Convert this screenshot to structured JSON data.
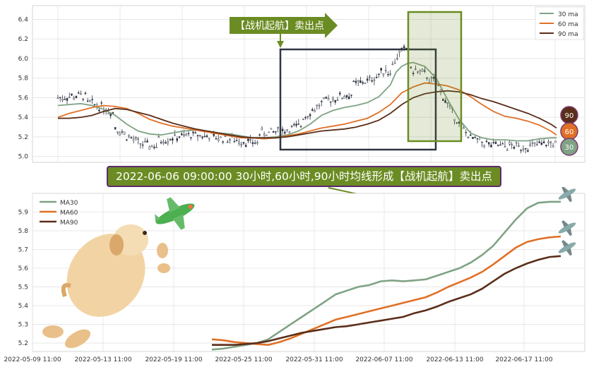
{
  "chart_data": [
    {
      "type": "line",
      "subtype": "candlestick-with-moving-averages",
      "y_ticks": [
        "5.0",
        "5.2",
        "5.4",
        "5.6",
        "5.8",
        "6.0",
        "6.2",
        "6.4"
      ],
      "ylim": [
        4.94,
        6.54
      ],
      "grid": true,
      "legend_position": "top-right",
      "legend": [
        {
          "label": "30 ma",
          "color": "#7fa384"
        },
        {
          "label": "60 ma",
          "color": "#e07026"
        },
        {
          "label": "90 ma",
          "color": "#5a2e1a"
        }
      ],
      "annotation_arrow": "【战机起航】卖出点",
      "series": [
        {
          "name": "30 ma",
          "color": "#7fa384",
          "points": [
            [
              0,
              5.52
            ],
            [
              8,
              5.53
            ],
            [
              16,
              5.54
            ],
            [
              24,
              5.52
            ],
            [
              32,
              5.48
            ],
            [
              40,
              5.42
            ],
            [
              48,
              5.33
            ],
            [
              56,
              5.26
            ],
            [
              64,
              5.23
            ],
            [
              72,
              5.22
            ],
            [
              80,
              5.24
            ],
            [
              88,
              5.26
            ],
            [
              96,
              5.27
            ],
            [
              104,
              5.26
            ],
            [
              112,
              5.24
            ],
            [
              120,
              5.23
            ],
            [
              128,
              5.21
            ],
            [
              136,
              5.19
            ],
            [
              144,
              5.19
            ],
            [
              152,
              5.2
            ],
            [
              160,
              5.22
            ],
            [
              168,
              5.26
            ],
            [
              176,
              5.33
            ],
            [
              184,
              5.42
            ],
            [
              192,
              5.47
            ],
            [
              200,
              5.5
            ],
            [
              208,
              5.52
            ],
            [
              216,
              5.55
            ],
            [
              224,
              5.61
            ],
            [
              232,
              5.73
            ],
            [
              236,
              5.86
            ],
            [
              240,
              5.92
            ],
            [
              244,
              5.95
            ],
            [
              248,
              5.96
            ],
            [
              256,
              5.92
            ],
            [
              264,
              5.8
            ],
            [
              272,
              5.58
            ],
            [
              280,
              5.38
            ],
            [
              288,
              5.24
            ],
            [
              296,
              5.19
            ],
            [
              304,
              5.17
            ],
            [
              312,
              5.17
            ],
            [
              320,
              5.16
            ],
            [
              328,
              5.16
            ],
            [
              336,
              5.18
            ],
            [
              344,
              5.19
            ],
            [
              348,
              5.19
            ]
          ]
        },
        {
          "name": "60 ma",
          "color": "#e07026",
          "points": [
            [
              0,
              5.4
            ],
            [
              8,
              5.44
            ],
            [
              16,
              5.47
            ],
            [
              24,
              5.5
            ],
            [
              32,
              5.52
            ],
            [
              40,
              5.51
            ],
            [
              48,
              5.49
            ],
            [
              56,
              5.44
            ],
            [
              64,
              5.38
            ],
            [
              72,
              5.34
            ],
            [
              80,
              5.31
            ],
            [
              88,
              5.29
            ],
            [
              96,
              5.27
            ],
            [
              104,
              5.25
            ],
            [
              112,
              5.23
            ],
            [
              120,
              5.21
            ],
            [
              128,
              5.19
            ],
            [
              136,
              5.19
            ],
            [
              144,
              5.18
            ],
            [
              152,
              5.19
            ],
            [
              160,
              5.21
            ],
            [
              168,
              5.23
            ],
            [
              176,
              5.26
            ],
            [
              184,
              5.29
            ],
            [
              192,
              5.31
            ],
            [
              200,
              5.33
            ],
            [
              208,
              5.36
            ],
            [
              216,
              5.39
            ],
            [
              224,
              5.45
            ],
            [
              232,
              5.53
            ],
            [
              240,
              5.65
            ],
            [
              248,
              5.71
            ],
            [
              256,
              5.75
            ],
            [
              264,
              5.74
            ],
            [
              272,
              5.72
            ],
            [
              280,
              5.68
            ],
            [
              288,
              5.61
            ],
            [
              296,
              5.53
            ],
            [
              304,
              5.46
            ],
            [
              312,
              5.41
            ],
            [
              320,
              5.39
            ],
            [
              328,
              5.36
            ],
            [
              336,
              5.32
            ],
            [
              344,
              5.26
            ],
            [
              348,
              5.22
            ]
          ]
        },
        {
          "name": "90 ma",
          "color": "#5a2e1a",
          "points": [
            [
              0,
              5.39
            ],
            [
              8,
              5.39
            ],
            [
              16,
              5.4
            ],
            [
              24,
              5.42
            ],
            [
              32,
              5.46
            ],
            [
              40,
              5.49
            ],
            [
              48,
              5.48
            ],
            [
              56,
              5.45
            ],
            [
              64,
              5.42
            ],
            [
              72,
              5.38
            ],
            [
              80,
              5.34
            ],
            [
              88,
              5.31
            ],
            [
              96,
              5.28
            ],
            [
              104,
              5.26
            ],
            [
              112,
              5.24
            ],
            [
              120,
              5.22
            ],
            [
              128,
              5.2
            ],
            [
              136,
              5.19
            ],
            [
              144,
              5.19
            ],
            [
              152,
              5.19
            ],
            [
              160,
              5.2
            ],
            [
              168,
              5.22
            ],
            [
              176,
              5.24
            ],
            [
              184,
              5.26
            ],
            [
              192,
              5.27
            ],
            [
              200,
              5.28
            ],
            [
              208,
              5.3
            ],
            [
              216,
              5.33
            ],
            [
              224,
              5.37
            ],
            [
              232,
              5.44
            ],
            [
              240,
              5.53
            ],
            [
              248,
              5.6
            ],
            [
              256,
              5.64
            ],
            [
              264,
              5.66
            ],
            [
              272,
              5.67
            ],
            [
              280,
              5.66
            ],
            [
              288,
              5.63
            ],
            [
              296,
              5.59
            ],
            [
              304,
              5.56
            ],
            [
              312,
              5.52
            ],
            [
              320,
              5.48
            ],
            [
              328,
              5.44
            ],
            [
              336,
              5.39
            ],
            [
              344,
              5.33
            ],
            [
              348,
              5.29
            ]
          ]
        }
      ],
      "end_badges": [
        "90",
        "60",
        "30"
      ]
    },
    {
      "type": "line",
      "title": "2022-06-06 09:00:00 30小时,60小时,90小时均线形成【战机起航】卖出点",
      "x_ticks": [
        "2022-05-09 11:00",
        "2022-05-13 11:00",
        "2022-05-19 11:00",
        "2022-05-25 11:00",
        "2022-05-31 11:00",
        "2022-06-07 11:00",
        "2022-06-13 11:00",
        "2022-06-17 11:00"
      ],
      "y_ticks": [
        "5.2",
        "5.3",
        "5.4",
        "5.5",
        "5.6",
        "5.7",
        "5.8",
        "5.9"
      ],
      "ylim": [
        5.155,
        6.0
      ],
      "grid": true,
      "legend_position": "top-left",
      "series": [
        {
          "name": "MA30",
          "color": "#7fa384",
          "points": [
            [
              0,
              5.165
            ],
            [
              6,
              5.17
            ],
            [
              12,
              5.18
            ],
            [
              18,
              5.19
            ],
            [
              24,
              5.2
            ],
            [
              30,
              5.22
            ],
            [
              36,
              5.26
            ],
            [
              42,
              5.3
            ],
            [
              48,
              5.34
            ],
            [
              54,
              5.38
            ],
            [
              60,
              5.42
            ],
            [
              66,
              5.46
            ],
            [
              72,
              5.48
            ],
            [
              78,
              5.5
            ],
            [
              84,
              5.51
            ],
            [
              90,
              5.53
            ],
            [
              96,
              5.535
            ],
            [
              102,
              5.53
            ],
            [
              108,
              5.535
            ],
            [
              114,
              5.54
            ],
            [
              120,
              5.56
            ],
            [
              126,
              5.58
            ],
            [
              132,
              5.6
            ],
            [
              138,
              5.63
            ],
            [
              144,
              5.67
            ],
            [
              150,
              5.72
            ],
            [
              156,
              5.79
            ],
            [
              162,
              5.86
            ],
            [
              168,
              5.92
            ],
            [
              174,
              5.95
            ],
            [
              180,
              5.955
            ],
            [
              186,
              5.955
            ]
          ]
        },
        {
          "name": "MA60",
          "color": "#e07026",
          "points": [
            [
              0,
              5.22
            ],
            [
              6,
              5.215
            ],
            [
              12,
              5.205
            ],
            [
              18,
              5.2
            ],
            [
              24,
              5.195
            ],
            [
              30,
              5.19
            ],
            [
              36,
              5.205
            ],
            [
              42,
              5.225
            ],
            [
              48,
              5.25
            ],
            [
              54,
              5.275
            ],
            [
              60,
              5.3
            ],
            [
              66,
              5.325
            ],
            [
              72,
              5.34
            ],
            [
              78,
              5.355
            ],
            [
              84,
              5.37
            ],
            [
              90,
              5.385
            ],
            [
              96,
              5.4
            ],
            [
              102,
              5.415
            ],
            [
              108,
              5.43
            ],
            [
              114,
              5.445
            ],
            [
              120,
              5.47
            ],
            [
              126,
              5.5
            ],
            [
              132,
              5.525
            ],
            [
              138,
              5.55
            ],
            [
              144,
              5.58
            ],
            [
              150,
              5.62
            ],
            [
              156,
              5.665
            ],
            [
              162,
              5.71
            ],
            [
              168,
              5.74
            ],
            [
              174,
              5.755
            ],
            [
              180,
              5.765
            ],
            [
              186,
              5.77
            ]
          ]
        },
        {
          "name": "MA90",
          "color": "#5a2e1a",
          "points": [
            [
              0,
              5.19
            ],
            [
              6,
              5.19
            ],
            [
              12,
              5.19
            ],
            [
              18,
              5.195
            ],
            [
              24,
              5.2
            ],
            [
              30,
              5.21
            ],
            [
              36,
              5.225
            ],
            [
              42,
              5.24
            ],
            [
              48,
              5.255
            ],
            [
              54,
              5.265
            ],
            [
              60,
              5.275
            ],
            [
              66,
              5.285
            ],
            [
              72,
              5.29
            ],
            [
              78,
              5.3
            ],
            [
              84,
              5.31
            ],
            [
              90,
              5.32
            ],
            [
              96,
              5.33
            ],
            [
              102,
              5.34
            ],
            [
              108,
              5.36
            ],
            [
              114,
              5.375
            ],
            [
              120,
              5.395
            ],
            [
              126,
              5.42
            ],
            [
              132,
              5.44
            ],
            [
              138,
              5.46
            ],
            [
              144,
              5.49
            ],
            [
              150,
              5.53
            ],
            [
              156,
              5.57
            ],
            [
              162,
              5.6
            ],
            [
              168,
              5.625
            ],
            [
              174,
              5.645
            ],
            [
              180,
              5.66
            ],
            [
              186,
              5.665
            ]
          ]
        }
      ]
    }
  ]
}
